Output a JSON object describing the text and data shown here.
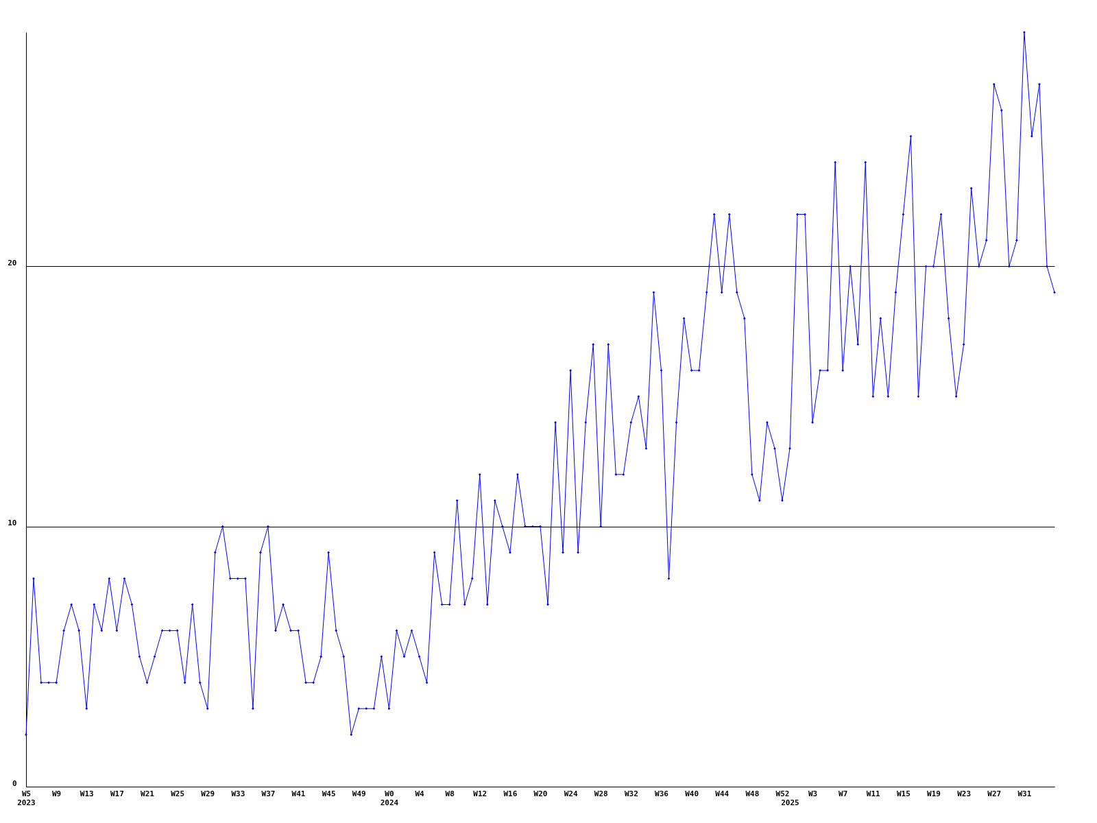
{
  "chart_data": {
    "type": "line",
    "categories": [
      "W5\n2023",
      null,
      null,
      null,
      "W9",
      null,
      null,
      null,
      "W13",
      null,
      null,
      null,
      "W17",
      null,
      null,
      null,
      "W21",
      null,
      null,
      null,
      "W25",
      null,
      null,
      null,
      "W29",
      null,
      null,
      null,
      "W33",
      null,
      null,
      null,
      "W37",
      null,
      null,
      null,
      "W41",
      null,
      null,
      null,
      "W45",
      null,
      null,
      null,
      "W49",
      null,
      null,
      null,
      "W0\n2024",
      null,
      null,
      null,
      "W4",
      null,
      null,
      null,
      "W8",
      null,
      null,
      null,
      "W12",
      null,
      null,
      null,
      "W16",
      null,
      null,
      null,
      "W20",
      null,
      null,
      null,
      "W24",
      null,
      null,
      null,
      "W28",
      null,
      null,
      null,
      "W32",
      null,
      null,
      null,
      "W36",
      null,
      null,
      null,
      "W40",
      null,
      null,
      null,
      "W44",
      null,
      null,
      null,
      "W48",
      null,
      null,
      null,
      "W52",
      "\n2025",
      null,
      null,
      "W3",
      null,
      null,
      null,
      "W7",
      null,
      null,
      null,
      "W11",
      null,
      null,
      null,
      "W15",
      null,
      null,
      null,
      "W19",
      null,
      null,
      null,
      "W23",
      null,
      null,
      null,
      "W27",
      null,
      null,
      null,
      "W31",
      null,
      null,
      null,
      null
    ],
    "series": [
      {
        "color": "#0000ff",
        "values": [
          2,
          8,
          4,
          4,
          4,
          6,
          7,
          6,
          3,
          7,
          6,
          8,
          6,
          8,
          7,
          5,
          4,
          5,
          6,
          6,
          6,
          4,
          7,
          4,
          3,
          9,
          10,
          8,
          8,
          8,
          3,
          9,
          10,
          6,
          7,
          6,
          6,
          4,
          4,
          5,
          9,
          6,
          5,
          2,
          3,
          3,
          3,
          5,
          3,
          6,
          5,
          6,
          5,
          4,
          9,
          7,
          7,
          11,
          7,
          8,
          12,
          7,
          11,
          10,
          9,
          12,
          10,
          10,
          10,
          7,
          14,
          9,
          16,
          9,
          14,
          17,
          10,
          17,
          12,
          12,
          14,
          15,
          13,
          19,
          16,
          8,
          14,
          18,
          16,
          16,
          19,
          22,
          19,
          22,
          19,
          18,
          12,
          11,
          14,
          13,
          11,
          13,
          22,
          22,
          14,
          16,
          16,
          24,
          16,
          20,
          17,
          24,
          15,
          18,
          15,
          19,
          22,
          25,
          15,
          20,
          20,
          22,
          18,
          15,
          17,
          23,
          20,
          21,
          27,
          26,
          20,
          21,
          29,
          25,
          27,
          20,
          19
        ]
      }
    ],
    "ylim": [
      0,
      29
    ],
    "yticks": [
      0,
      10,
      20
    ],
    "grid": "y",
    "marker": "diamond",
    "line_style": "solid"
  }
}
